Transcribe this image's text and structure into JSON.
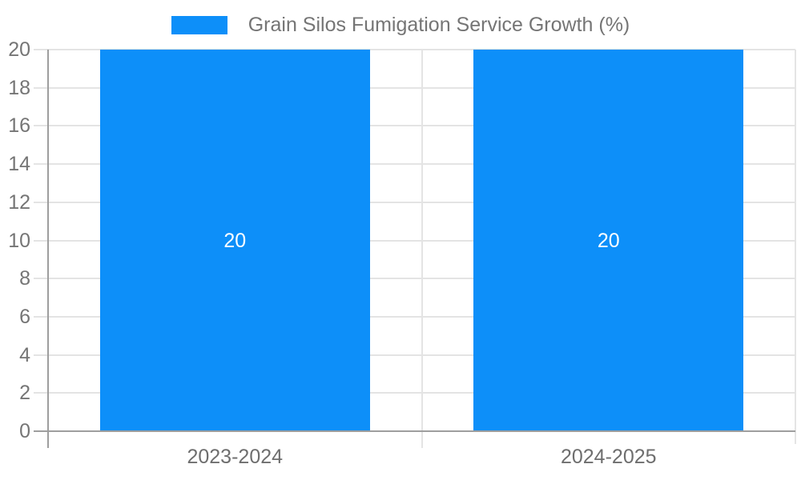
{
  "chart_data": {
    "type": "bar",
    "title": "Grain Silos Fumigation Service Growth (%)",
    "legend": {
      "label": "Grain Silos Fumigation Service Growth (%)",
      "position": "top",
      "swatch_color": "#0d8ff9"
    },
    "categories": [
      "2023-2024",
      "2024-2025"
    ],
    "series": [
      {
        "name": "Grain Silos Fumigation Service Growth (%)",
        "color": "#0d8ff9",
        "values": [
          20,
          20
        ]
      }
    ],
    "bar_value_labels": [
      "20",
      "20"
    ],
    "bar_value_label_color": "#ffffff",
    "xlabel": "",
    "ylabel": "",
    "ylim": [
      0,
      20
    ],
    "yticks": [
      0,
      2,
      4,
      6,
      8,
      10,
      12,
      14,
      16,
      18,
      20
    ],
    "grid": true,
    "grid_color": "#e4e4e4",
    "axis_color": "#9e9e9e",
    "tick_label_color": "#757575"
  }
}
